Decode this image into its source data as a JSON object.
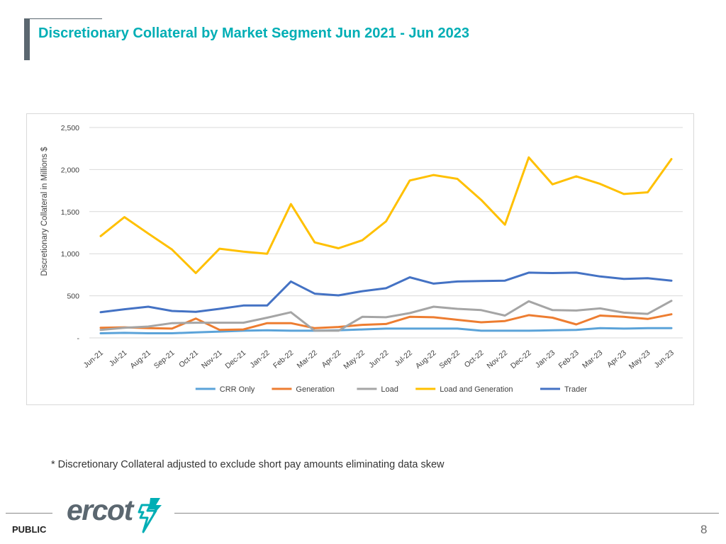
{
  "header": {
    "title": "Discretionary Collateral by Market Segment Jun 2021 - Jun 2023"
  },
  "chart_data": {
    "type": "line",
    "title": "",
    "xlabel": "",
    "ylabel": "Discretionary Collateral in Millions $",
    "ylim": [
      0,
      2500
    ],
    "yticks": [
      0,
      500,
      1000,
      1500,
      2000,
      2500
    ],
    "ytick_labels": [
      "-",
      "500",
      "1,000",
      "1,500",
      "2,000",
      "2,500"
    ],
    "grid": true,
    "legend_position": "bottom",
    "categories": [
      "Jun-21",
      "Jul-21",
      "Aug-21",
      "Sep-21",
      "Oct-21",
      "Nov-21",
      "Dec-21",
      "Jan-22",
      "Feb-22",
      "Mar-22",
      "Apr-22",
      "May-22",
      "Jun-22",
      "Jul-22",
      "Aug-22",
      "Sep-22",
      "Oct-22",
      "Nov-22",
      "Dec-22",
      "Jan-23",
      "Feb-23",
      "Mar-23",
      "Apr-23",
      "May-23",
      "Jun-23"
    ],
    "series": [
      {
        "name": "CRR Only",
        "color": "#5ba3d9",
        "values": [
          55,
          60,
          55,
          55,
          65,
          75,
          85,
          90,
          85,
          85,
          90,
          100,
          110,
          110,
          110,
          110,
          85,
          85,
          85,
          90,
          95,
          115,
          110,
          115,
          115
        ]
      },
      {
        "name": "Generation",
        "color": "#ed7d31",
        "values": [
          120,
          125,
          115,
          110,
          230,
          95,
          100,
          175,
          175,
          115,
          130,
          155,
          165,
          250,
          245,
          215,
          185,
          200,
          270,
          240,
          160,
          265,
          250,
          225,
          280
        ]
      },
      {
        "name": "Load",
        "color": "#a5a5a5",
        "values": [
          95,
          120,
          135,
          175,
          180,
          180,
          180,
          240,
          305,
          85,
          85,
          250,
          245,
          295,
          370,
          345,
          330,
          265,
          435,
          330,
          325,
          350,
          300,
          285,
          440
        ]
      },
      {
        "name": "Load and Generation",
        "color": "#ffc000",
        "values": [
          1210,
          1435,
          1240,
          1050,
          770,
          1060,
          1025,
          1000,
          1590,
          1135,
          1065,
          1160,
          1385,
          1870,
          1935,
          1890,
          1640,
          1345,
          2145,
          1825,
          1920,
          1830,
          1710,
          1730,
          2125
        ]
      },
      {
        "name": "Trader",
        "color": "#4472c4",
        "values": [
          305,
          340,
          370,
          320,
          310,
          345,
          385,
          385,
          670,
          525,
          505,
          555,
          590,
          720,
          645,
          670,
          675,
          680,
          775,
          770,
          775,
          730,
          700,
          710,
          680
        ]
      }
    ]
  },
  "footnote": "* Discretionary Collateral adjusted to exclude short pay amounts eliminating data skew",
  "footer": {
    "logo_text": "ercot",
    "public_label": "PUBLIC",
    "page_number": "8"
  }
}
